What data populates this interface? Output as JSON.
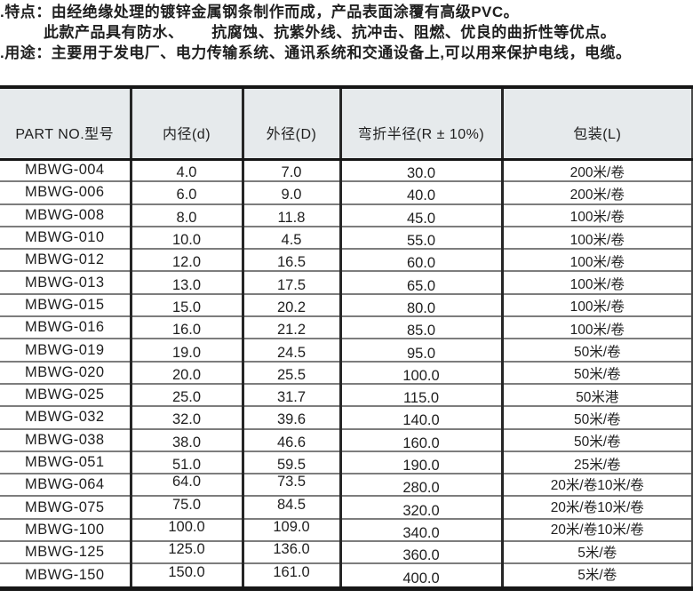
{
  "intro": {
    "features_line": ".特点：由经绝缘处理的镀锌金属钢条制作而成，产品表面涂覆有高级PVC。",
    "features_cont_line": "此款产品具有防水、　　 抗腐蚀、抗紫外线、抗冲击、阻燃、优良的曲折性等优点。",
    "usage_line": ".用途：主要用于发电厂、电力传输系统、通讯系统和交通设备上,可以用来保护电线，电缆。"
  },
  "table": {
    "columns": [
      "PART NO.型号",
      "内径(d)",
      "外径(D)",
      "弯折半径(R ± 10%)",
      "包装(L)"
    ],
    "rows": [
      {
        "part_no": "MBWG-004",
        "inner_d": "4.0",
        "outer_d": "7.0",
        "bend_radius": "30.0",
        "packing": "200米/卷"
      },
      {
        "part_no": "MBWG-006",
        "inner_d": "6.0",
        "outer_d": "9.0",
        "bend_radius": "40.0",
        "packing": "200米/卷"
      },
      {
        "part_no": "MBWG-008",
        "inner_d": "8.0",
        "outer_d": "11.8",
        "bend_radius": "45.0",
        "packing": "100米/卷"
      },
      {
        "part_no": "MBWG-010",
        "inner_d": "10.0",
        "outer_d": "4.5",
        "bend_radius": "55.0",
        "packing": "100米/卷"
      },
      {
        "part_no": "MBWG-012",
        "inner_d": "12.0",
        "outer_d": "16.5",
        "bend_radius": "60.0",
        "packing": "100米/卷"
      },
      {
        "part_no": "MBWG-013",
        "inner_d": "13.0",
        "outer_d": "17.5",
        "bend_radius": "65.0",
        "packing": "100米/卷"
      },
      {
        "part_no": "MBWG-015",
        "inner_d": "15.0",
        "outer_d": "20.2",
        "bend_radius": "80.0",
        "packing": "100米/卷"
      },
      {
        "part_no": "MBWG-016",
        "inner_d": "16.0",
        "outer_d": "21.2",
        "bend_radius": "85.0",
        "packing": "100米/卷"
      },
      {
        "part_no": "MBWG-019",
        "inner_d": "19.0",
        "outer_d": "24.5",
        "bend_radius": "95.0",
        "packing": "50米/卷"
      },
      {
        "part_no": "MBWG-020",
        "inner_d": "20.0",
        "outer_d": "25.5",
        "bend_radius": "100.0",
        "packing": "50米/卷"
      },
      {
        "part_no": "MBWG-025",
        "inner_d": "25.0",
        "outer_d": "31.7",
        "bend_radius": "115.0",
        "packing": "50米港"
      },
      {
        "part_no": "MBWG-032",
        "inner_d": "32.0",
        "outer_d": "39.6",
        "bend_radius": "140.0",
        "packing": "50米/卷"
      },
      {
        "part_no": "MBWG-038",
        "inner_d": "38.0",
        "outer_d": "46.6",
        "bend_radius": "160.0",
        "packing": "50米/卷"
      },
      {
        "part_no": "MBWG-051",
        "inner_d": "51.0",
        "outer_d": "59.5",
        "bend_radius": "190.0",
        "packing": "25米/卷"
      },
      {
        "part_no": "MBWG-064",
        "inner_d": "64.0",
        "outer_d": "73.5",
        "bend_radius": "280.0",
        "packing": "20米/卷10米/卷"
      },
      {
        "part_no": "MBWG-075",
        "inner_d": "75.0",
        "outer_d": "84.5",
        "bend_radius": "320.0",
        "packing": "20米/卷10米/卷"
      },
      {
        "part_no": "MBWG-100",
        "inner_d": "100.0",
        "outer_d": "109.0",
        "bend_radius": "340.0",
        "packing": "20米/卷10米/卷"
      },
      {
        "part_no": "MBWG-125",
        "inner_d": "125.0",
        "outer_d": "136.0",
        "bend_radius": "360.0",
        "packing": "5米/卷"
      },
      {
        "part_no": "MBWG-150",
        "inner_d": "150.0",
        "outer_d": "161.0",
        "bend_radius": "400.0",
        "packing": "5米/卷"
      }
    ]
  },
  "colors": {
    "header_bg": "#e6eaec",
    "heavy_border": "#161616",
    "row_line": "#7d7d7d",
    "text": "#1f1f1f"
  }
}
